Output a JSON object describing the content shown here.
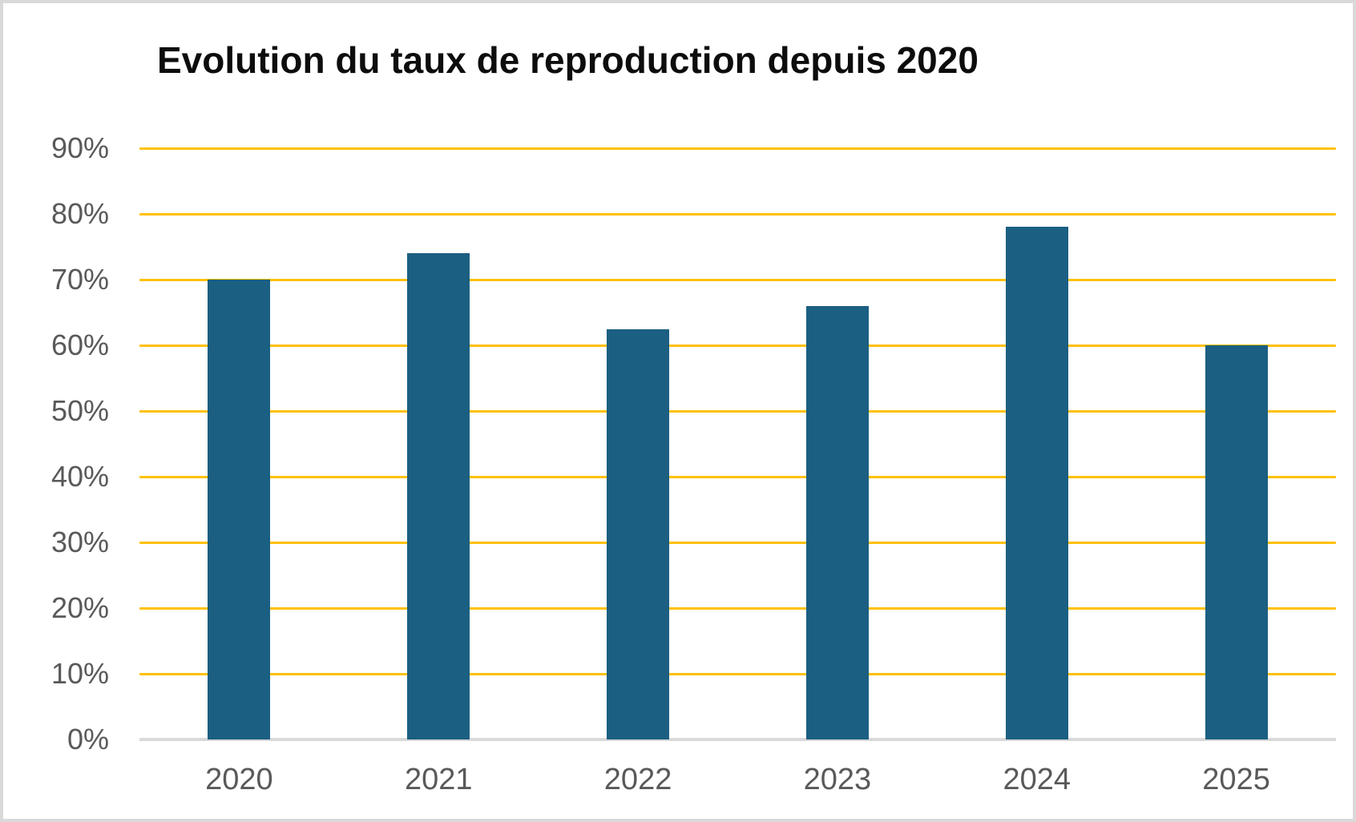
{
  "chart_data": {
    "type": "bar",
    "title": "Evolution du taux de reproduction depuis 2020",
    "categories": [
      "2020",
      "2021",
      "2022",
      "2023",
      "2024",
      "2025"
    ],
    "values": [
      70,
      74,
      62.5,
      66,
      78,
      60
    ],
    "unit": "%",
    "xlabel": "",
    "ylabel": "",
    "ylim": [
      0,
      90
    ],
    "ytick_step": 10,
    "ytick_labels": [
      "0%",
      "10%",
      "20%",
      "30%",
      "40%",
      "50%",
      "60%",
      "70%",
      "80%",
      "90%"
    ],
    "grid": true,
    "legend_position": "none",
    "colors": {
      "bar": "#1B5F82",
      "gridline": "#FFC107",
      "baseline": "#D9D9D9",
      "axis_label": "#595959",
      "title": "#0D0D0D",
      "frame_border": "#D9D9D9",
      "background": "#FFFFFF"
    }
  }
}
